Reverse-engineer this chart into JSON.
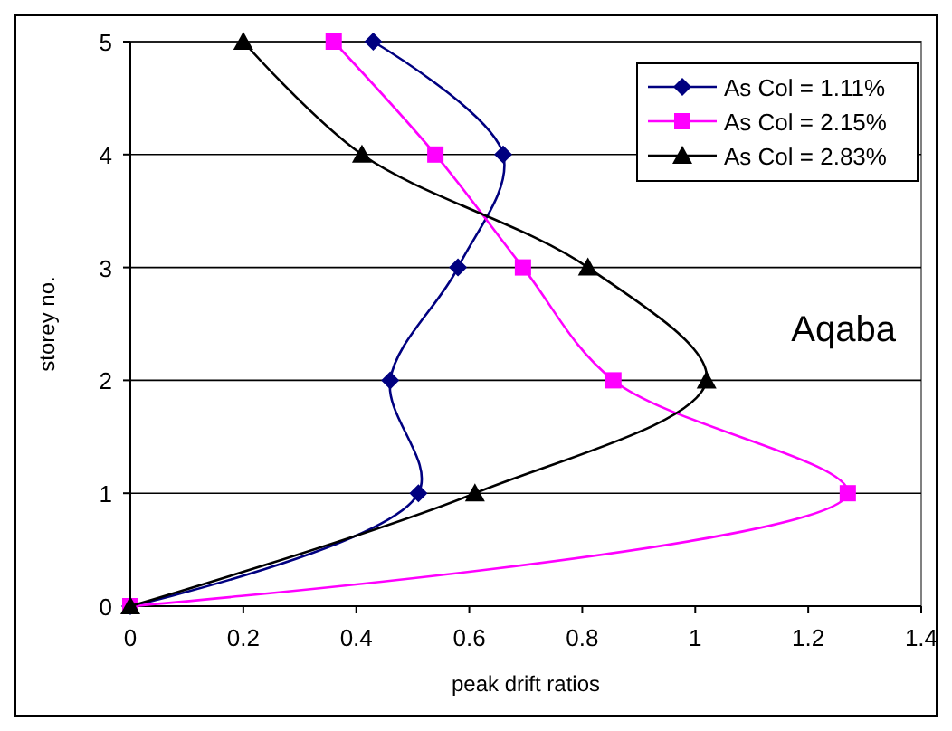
{
  "chart_data": {
    "type": "line",
    "xlabel": "peak drift ratios",
    "ylabel": "storey no.",
    "xlim": [
      0,
      1.4
    ],
    "xticks": [
      0,
      0.2,
      0.4,
      0.6,
      0.8,
      1,
      1.2,
      1.4
    ],
    "ylim": [
      0,
      5
    ],
    "yticks": [
      0,
      1,
      2,
      3,
      4,
      5
    ],
    "grid": "y",
    "legend": "top right",
    "line_style": "solid",
    "annotations": [
      "Aqaba"
    ],
    "series": [
      {
        "name": "As Col = 1.11%",
        "color": "#000080",
        "marker": "diamond",
        "x": [
          0,
          0.51,
          0.46,
          0.58,
          0.66,
          0.43
        ],
        "values": [
          0,
          1,
          2,
          3,
          4,
          5
        ]
      },
      {
        "name": "As Col = 2.15%",
        "color": "#ff00ff",
        "marker": "square",
        "x": [
          0,
          1.27,
          0.855,
          0.695,
          0.54,
          0.36
        ],
        "values": [
          0,
          1,
          2,
          3,
          4,
          5
        ]
      },
      {
        "name": "As Col = 2.83%",
        "color": "#000000",
        "marker": "triangle",
        "x": [
          0,
          0.61,
          1.02,
          0.81,
          0.41,
          0.2
        ],
        "values": [
          0,
          1,
          2,
          3,
          4,
          5
        ]
      }
    ]
  }
}
